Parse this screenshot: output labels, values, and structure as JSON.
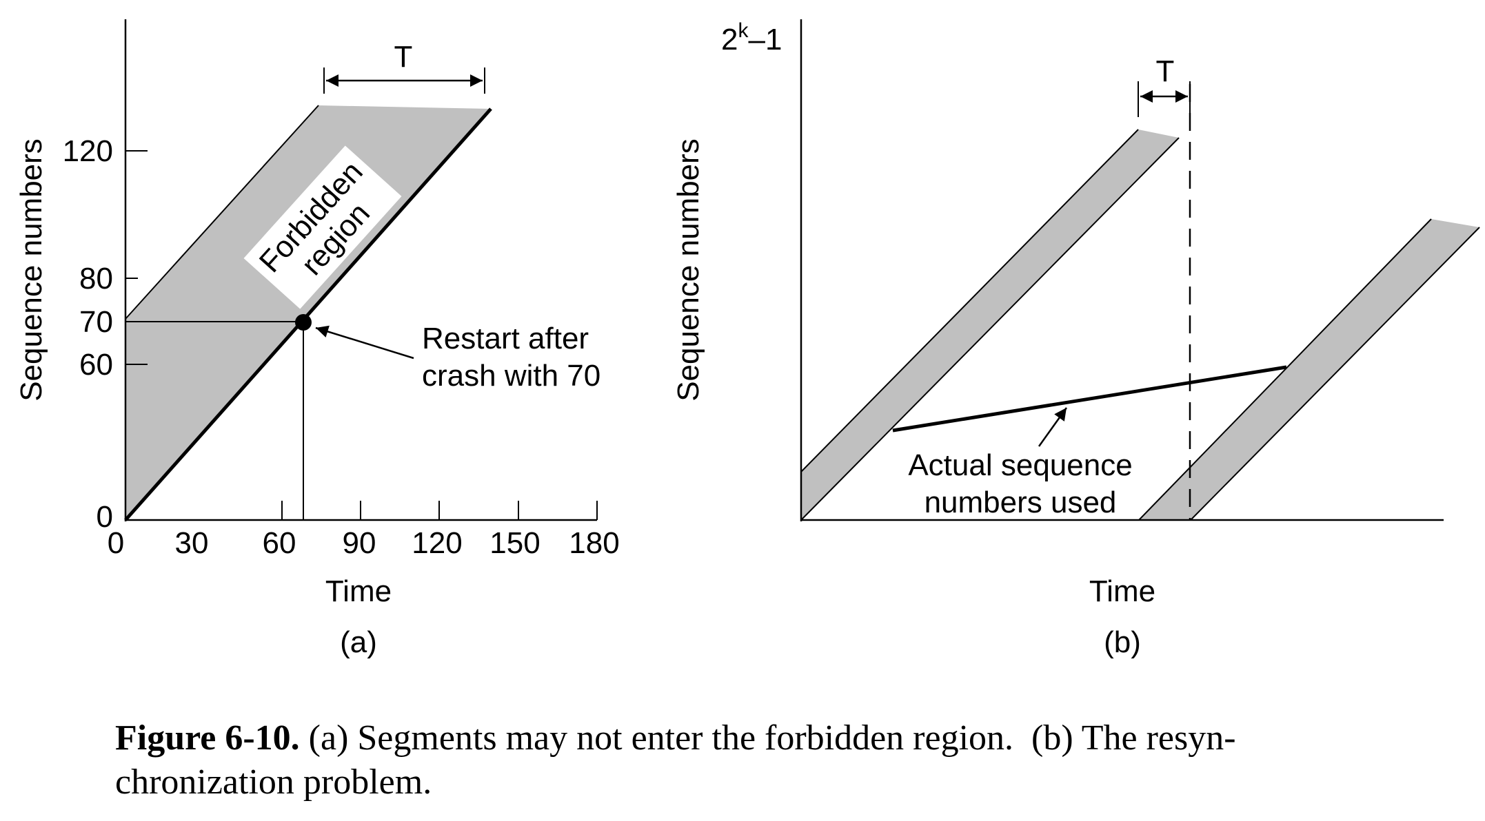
{
  "panel_a": {
    "y_axis_label": "Sequence numbers",
    "x_axis_label": "Time",
    "panel_label": "(a)",
    "y_ticks": [
      "0",
      "60",
      "70",
      "80",
      "120"
    ],
    "x_ticks": [
      "0",
      "30",
      "60",
      "90",
      "120",
      "150",
      "180"
    ],
    "interval_label": "T",
    "region_label_line1": "Forbidden",
    "region_label_line2": "region",
    "annotation_line1": "Restart after",
    "annotation_line2": "crash with 70"
  },
  "panel_b": {
    "y_top_label_base": "2",
    "y_top_label_sup": "k",
    "y_top_label_rest": "–1",
    "y_axis_label": "Sequence numbers",
    "x_axis_label": "Time",
    "panel_label": "(b)",
    "interval_label": "T",
    "annotation_line1": "Actual sequence",
    "annotation_line2": "numbers used"
  },
  "caption": {
    "figure_number": "Figure 6-10.",
    "text_line1": " (a) Segments may not enter the forbidden region.  (b) The resyn-",
    "text_line2": "chronization problem."
  },
  "colors": {
    "shade": "#c0c0c0",
    "ink": "#000000",
    "background": "#ffffff"
  }
}
